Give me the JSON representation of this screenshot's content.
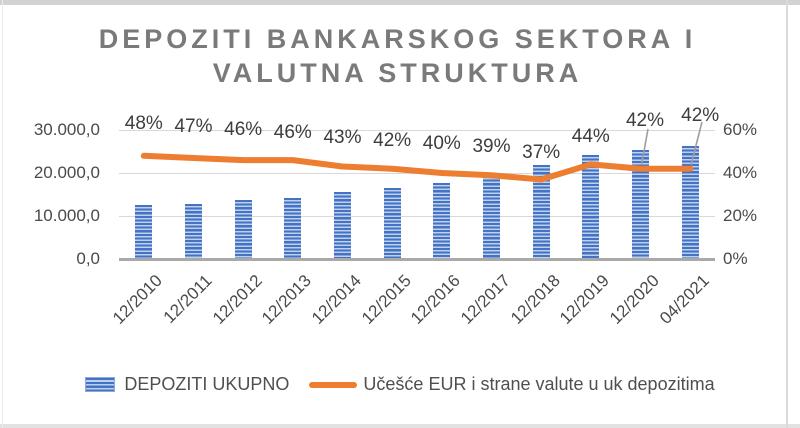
{
  "title": {
    "line1": "DEPOZITI BANKARSKOG SEKTORA I",
    "line2": "VALUTNA STRUKTURA"
  },
  "chart_data": {
    "type": "combo-bar-line",
    "categories": [
      "12/2010",
      "12/2011",
      "12/2012",
      "12/2013",
      "12/2014",
      "12/2015",
      "12/2016",
      "12/2017",
      "12/2018",
      "12/2019",
      "12/2020",
      "04/2021"
    ],
    "series": [
      {
        "name": "DEPOZITI UKUPNO",
        "type": "bar",
        "axis": "left",
        "color": "#4472c4",
        "values": [
          12500,
          12900,
          13700,
          14300,
          15600,
          16600,
          17800,
          19200,
          21900,
          24100,
          25300,
          26400
        ]
      },
      {
        "name": "Učešće EUR i strane valute u uk depozitima",
        "type": "line",
        "axis": "right",
        "color": "#ed7d31",
        "unit": "%",
        "values": [
          48,
          47,
          46,
          46,
          43,
          42,
          40,
          39,
          37,
          44,
          42,
          42
        ]
      }
    ],
    "data_labels": [
      "48%",
      "47%",
      "46%",
      "46%",
      "43%",
      "42%",
      "40%",
      "39%",
      "37%",
      "44%",
      "42%",
      "42%"
    ],
    "left_axis": {
      "min": 0,
      "max": 30000,
      "ticks": [
        "30.000,0",
        "20.000,0",
        "10.000,0",
        "0,0"
      ]
    },
    "right_axis": {
      "min": 0,
      "max": 60,
      "ticks": [
        "60%",
        "40%",
        "20%",
        "0%"
      ]
    },
    "grid": true,
    "legend_position": "bottom"
  },
  "colors": {
    "bar": "#4472c4",
    "bar_stripe": "#bdd0ec",
    "line": "#ed7d31",
    "title_text": "#7a7a7a",
    "axis_text": "#4a4a4a",
    "data_label_text": "#3d3d3d",
    "gridline": "#d9d9d9",
    "axis_line": "#a9a9a9",
    "leader_line": "#9e9e9e"
  }
}
